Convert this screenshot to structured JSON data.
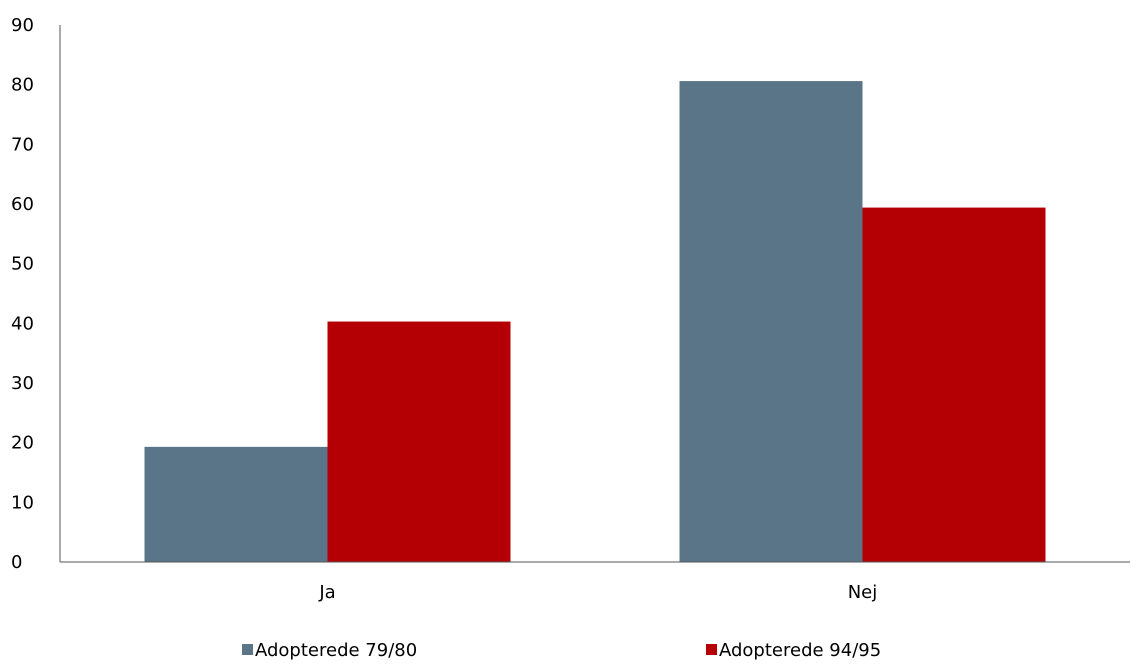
{
  "chart_data": {
    "type": "bar",
    "categories": [
      "Ja",
      "Nej"
    ],
    "series": [
      {
        "name": "Adopterede 79/80",
        "values": [
          19.3,
          80.6
        ],
        "color": "#5a7587"
      },
      {
        "name": "Adopterede 94/95",
        "values": [
          40.3,
          59.4
        ],
        "color": "#b40005"
      }
    ],
    "ylim": [
      0,
      90
    ],
    "yticks": [
      0,
      10,
      20,
      30,
      40,
      50,
      60,
      70,
      80,
      90
    ],
    "grid": false,
    "legend_position": "bottom"
  }
}
